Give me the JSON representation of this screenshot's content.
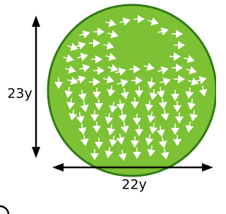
{
  "labels": {
    "height": "23y",
    "width": "22y"
  }
}
